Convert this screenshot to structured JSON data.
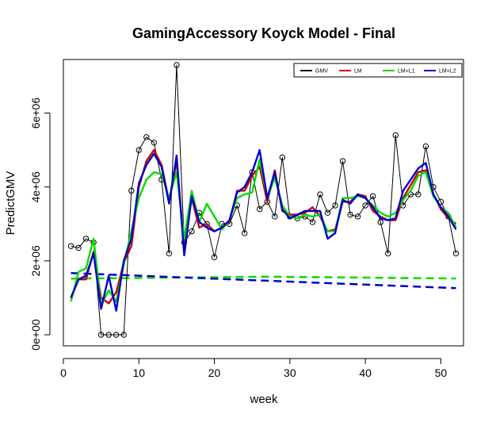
{
  "chart_data": {
    "type": "line",
    "title": "GamingAccessory Koyck Model - Final",
    "xlabel": "week",
    "ylabel": "PredictGMV",
    "xlim": [
      0,
      53
    ],
    "ylim": [
      -300000,
      7450000
    ],
    "x_ticks": [
      0,
      10,
      20,
      30,
      40,
      50
    ],
    "x_tick_labels": [
      "0",
      "10",
      "20",
      "30",
      "40",
      "50"
    ],
    "y_ticks": [
      0,
      2000000,
      4000000,
      6000000
    ],
    "y_tick_labels": [
      "0e+00",
      "2e+06",
      "4e+06",
      "6e+06"
    ],
    "legend_position": "top-right",
    "x": [
      1,
      2,
      3,
      4,
      5,
      6,
      7,
      8,
      9,
      10,
      11,
      12,
      13,
      14,
      15,
      16,
      17,
      18,
      19,
      20,
      21,
      22,
      23,
      24,
      25,
      26,
      27,
      28,
      29,
      30,
      31,
      32,
      33,
      34,
      35,
      36,
      37,
      38,
      39,
      40,
      41,
      42,
      43,
      44,
      45,
      46,
      47,
      48,
      49,
      50,
      51,
      52
    ],
    "series": [
      {
        "name": "GMV",
        "color": "#000000",
        "style": "solid-points",
        "values": [
          2400000,
          2350000,
          2600000,
          2500000,
          0,
          0,
          0,
          0,
          3900000,
          5000000,
          5350000,
          5200000,
          4200000,
          2200000,
          7300000,
          2500000,
          2800000,
          3300000,
          3000000,
          2100000,
          3000000,
          3000000,
          3500000,
          2750000,
          4400000,
          3400000,
          3600000,
          3200000,
          4800000,
          3200000,
          3150000,
          3200000,
          3050000,
          3800000,
          3300000,
          3500000,
          4700000,
          3250000,
          3200000,
          3500000,
          3750000,
          3050000,
          2200000,
          5400000,
          3500000,
          3800000,
          3800000,
          5100000,
          4000000,
          3600000,
          3200000,
          2200000
        ]
      },
      {
        "name": "LM",
        "color": "#cc0000",
        "style": "solid",
        "values": [
          1000000,
          1500000,
          1500000,
          2250000,
          1000000,
          850000,
          1150000,
          1950000,
          2400000,
          4000000,
          4700000,
          5000000,
          4600000,
          3600000,
          4700000,
          2400000,
          3700000,
          2900000,
          3000000,
          2800000,
          2900000,
          3050000,
          3900000,
          3900000,
          4300000,
          4550000,
          3600000,
          4450000,
          3350000,
          3250000,
          3250000,
          3300000,
          3450000,
          3200000,
          2800000,
          2850000,
          3600000,
          3600000,
          3800000,
          3750000,
          3350000,
          3200000,
          3100000,
          3100000,
          3700000,
          4050000,
          4400000,
          4450000,
          3800000,
          3400000,
          3150000,
          3000000
        ]
      },
      {
        "name": "LM+L1",
        "color": "#00dd00",
        "style": "solid",
        "values": [
          900000,
          1700000,
          1800000,
          2600000,
          800000,
          1200000,
          900000,
          1900000,
          2800000,
          3700000,
          4200000,
          4400000,
          4350000,
          3700000,
          4400000,
          2600000,
          3900000,
          3050000,
          3550000,
          3200000,
          2850000,
          3100000,
          3700000,
          3800000,
          3850000,
          4750000,
          3700000,
          4250000,
          3500000,
          3200000,
          3150000,
          3250000,
          3200000,
          3250000,
          2800000,
          2800000,
          3700000,
          3700000,
          3750000,
          3700000,
          3500000,
          3300000,
          3200000,
          3300000,
          3650000,
          3900000,
          4300000,
          4400000,
          3750000,
          3450000,
          3300000,
          2900000
        ]
      },
      {
        "name": "LM+L2",
        "color": "#0000cc",
        "style": "solid",
        "values": [
          1000000,
          1500000,
          1600000,
          2200000,
          700000,
          1600000,
          650000,
          2000000,
          2600000,
          4100000,
          4600000,
          4900000,
          4550000,
          3550000,
          4850000,
          2150000,
          3750000,
          3050000,
          2900000,
          2800000,
          2900000,
          3100000,
          3850000,
          4000000,
          4400000,
          5000000,
          3700000,
          4400000,
          3400000,
          3150000,
          3250000,
          3350000,
          3350000,
          3350000,
          2600000,
          2750000,
          3650000,
          3550000,
          3800000,
          3700000,
          3450000,
          3150000,
          3100000,
          3150000,
          3900000,
          4200000,
          4500000,
          4650000,
          3800000,
          3450000,
          3200000,
          2850000
        ]
      },
      {
        "name": "",
        "color": "#00dd00",
        "style": "dashed",
        "values": [
          1520000,
          1522000,
          1524000,
          1526000,
          1528000,
          1530000,
          1532000,
          1534000,
          1536000,
          1538000,
          1540000,
          1542000,
          1544000,
          1546000,
          1548000,
          1550000,
          1552000,
          1554000,
          1556000,
          1558000,
          1560000,
          1562000,
          1564000,
          1566000,
          1568000,
          1570000,
          1570000,
          1570000,
          1568000,
          1566000,
          1564000,
          1562000,
          1560000,
          1558000,
          1556000,
          1554000,
          1552000,
          1550000,
          1548000,
          1546000,
          1544000,
          1542000,
          1540000,
          1538000,
          1536000,
          1534000,
          1532000,
          1530000,
          1528000,
          1526000,
          1524000,
          1522000
        ]
      },
      {
        "name": "",
        "color": "#0000cc",
        "style": "dashed",
        "values": [
          1670000,
          1662000,
          1654000,
          1646000,
          1638000,
          1630000,
          1622000,
          1614000,
          1606000,
          1598000,
          1590000,
          1582000,
          1574000,
          1566000,
          1558000,
          1550000,
          1542000,
          1534000,
          1526000,
          1518000,
          1510000,
          1502000,
          1494000,
          1486000,
          1478000,
          1470000,
          1462000,
          1454000,
          1446000,
          1438000,
          1430000,
          1422000,
          1414000,
          1406000,
          1398000,
          1390000,
          1382000,
          1374000,
          1366000,
          1358000,
          1350000,
          1342000,
          1334000,
          1326000,
          1318000,
          1310000,
          1302000,
          1294000,
          1286000,
          1278000,
          1270000,
          1262000
        ]
      }
    ]
  }
}
